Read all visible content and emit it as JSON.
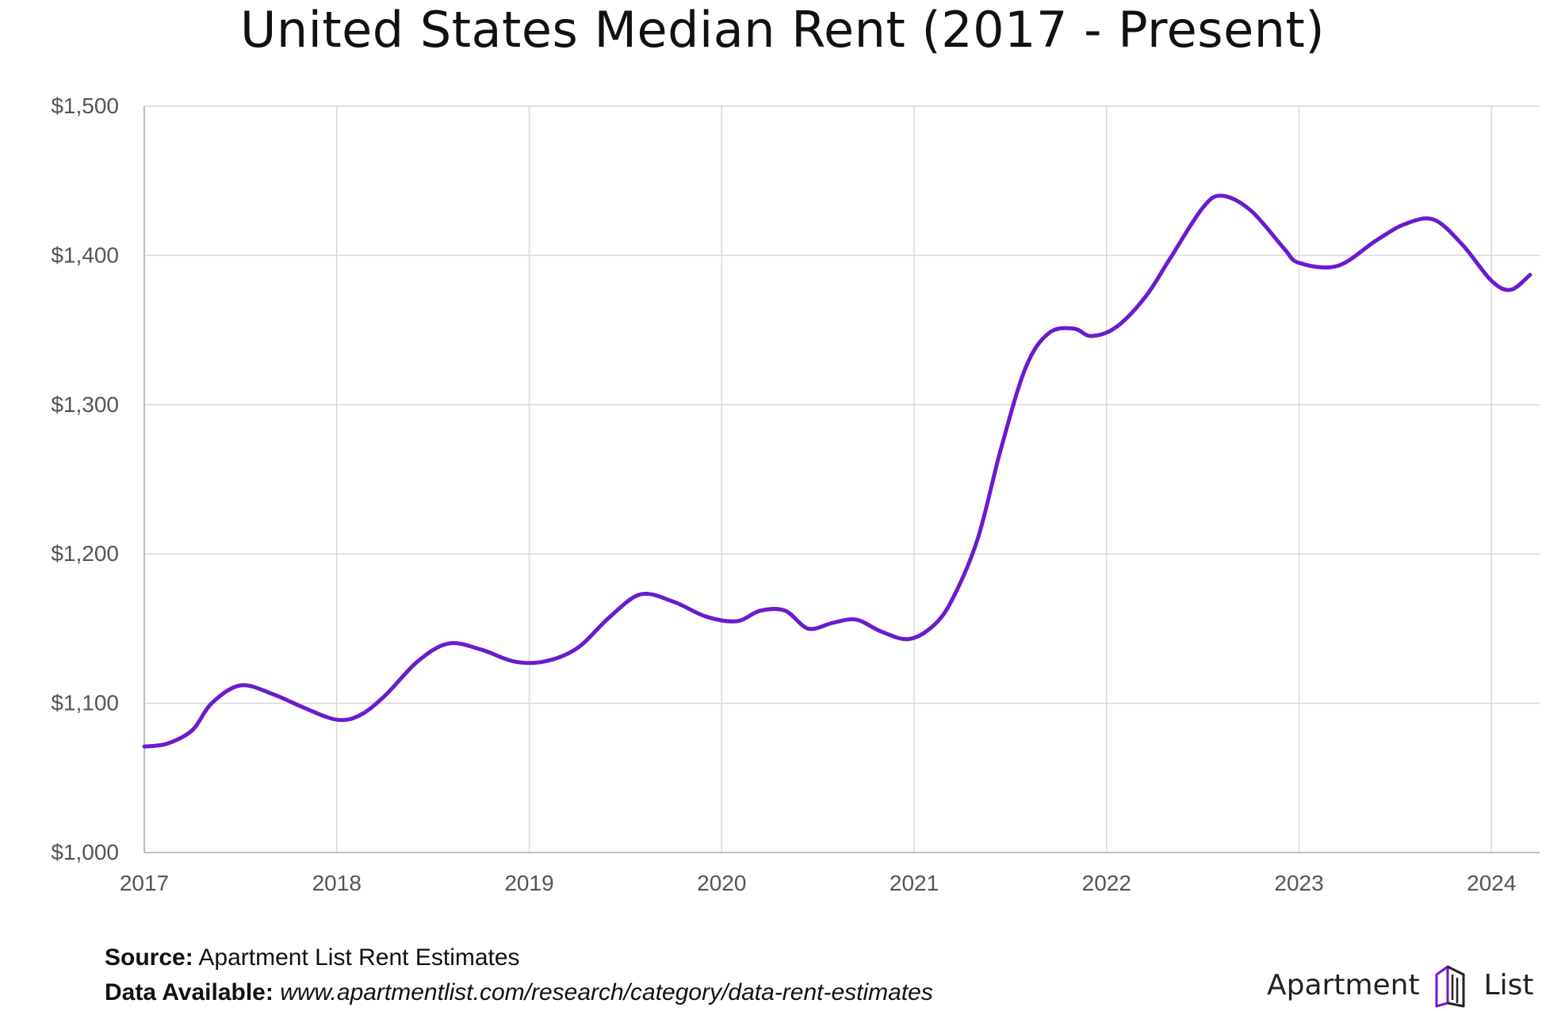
{
  "chart_data": {
    "type": "line",
    "title": "United States Median Rent (2017 - Present)",
    "xlabel": "",
    "ylabel": "",
    "xlim": [
      2017.0,
      2024.25
    ],
    "ylim": [
      1000,
      1500
    ],
    "grid": true,
    "x_ticks": [
      "2017",
      "2018",
      "2019",
      "2020",
      "2021",
      "2022",
      "2023",
      "2024"
    ],
    "y_ticks": [
      "$1,000",
      "$1,100",
      "$1,200",
      "$1,300",
      "$1,400",
      "$1,500"
    ],
    "line_color": "#6a1bce",
    "series": [
      {
        "name": "",
        "x": [
          2017.0,
          2017.12,
          2017.25,
          2017.35,
          2017.5,
          2017.67,
          2017.83,
          2018.0,
          2018.12,
          2018.25,
          2018.42,
          2018.58,
          2018.75,
          2018.92,
          2019.08,
          2019.25,
          2019.42,
          2019.58,
          2019.75,
          2019.92,
          2020.08,
          2020.2,
          2020.33,
          2020.45,
          2020.58,
          2020.7,
          2020.83,
          2020.97,
          2021.1,
          2021.2,
          2021.33,
          2021.45,
          2021.58,
          2021.7,
          2021.83,
          2021.92,
          2022.05,
          2022.2,
          2022.33,
          2022.5,
          2022.6,
          2022.75,
          2022.92,
          2023.0,
          2023.2,
          2023.4,
          2023.55,
          2023.7,
          2023.85,
          2024.0,
          2024.1,
          2024.2
        ],
        "y": [
          1071,
          1073,
          1082,
          1100,
          1112,
          1106,
          1097,
          1089,
          1092,
          1105,
          1128,
          1140,
          1136,
          1128,
          1128,
          1137,
          1158,
          1173,
          1168,
          1158,
          1155,
          1162,
          1162,
          1150,
          1154,
          1156,
          1148,
          1143,
          1152,
          1170,
          1210,
          1270,
          1325,
          1348,
          1351,
          1346,
          1352,
          1372,
          1398,
          1432,
          1440,
          1430,
          1405,
          1395,
          1393,
          1410,
          1421,
          1424,
          1407,
          1383,
          1377,
          1387
        ]
      }
    ]
  },
  "footer": {
    "source_label": "Source:",
    "source_text": "Apartment List Rent Estimates",
    "data_label": "Data Available:",
    "data_text": "www.apartmentlist.com/research/category/data-rent-estimates"
  },
  "brand": {
    "name_left": "Apartment",
    "name_right": "List",
    "logo_icon": "building-icon"
  }
}
